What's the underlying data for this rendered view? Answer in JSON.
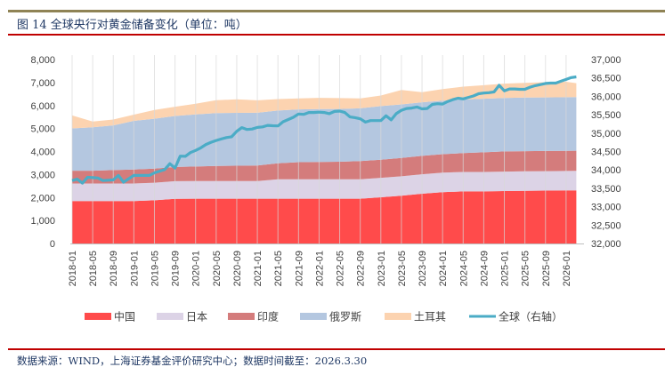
{
  "title": "图 14  全球央行对黄金储备变化（单位：吨）",
  "footer": "数据来源：WIND，上海证券基金评价研究中心；数据时间截至：2026.3.30",
  "colors": {
    "china": "#ff4b4b",
    "japan": "#dcd3e6",
    "india": "#d47c7c",
    "russia": "#b4c7e0",
    "turkey": "#fcd3b0",
    "global": "#4bacc6",
    "title": "#1f3864",
    "rule_top": "#8f8355",
    "rule_red": "#c00000"
  },
  "chart_data": {
    "type": "area",
    "stacked": true,
    "title": "",
    "xlabel": "",
    "ylabel": "",
    "y2label": "",
    "ylim": [
      0,
      8000
    ],
    "y2lim": [
      32000,
      37000
    ],
    "yticks": [
      "0",
      "1,000",
      "2,000",
      "3,000",
      "4,000",
      "5,000",
      "6,000",
      "7,000",
      "8,000"
    ],
    "y2ticks": [
      "32,000",
      "32,500",
      "33,000",
      "33,500",
      "34,000",
      "34,500",
      "35,000",
      "35,500",
      "36,000",
      "36,500",
      "37,000"
    ],
    "xticks": [
      "2018-01",
      "2018-05",
      "2018-09",
      "2019-01",
      "2019-05",
      "2019-09",
      "2020-01",
      "2020-05",
      "2020-09",
      "2021-01",
      "2021-05",
      "2021-09",
      "2022-01",
      "2022-05",
      "2022-09",
      "2023-01",
      "2023-05",
      "2023-09",
      "2024-01",
      "2024-05",
      "2024-09",
      "2025-01",
      "2025-05",
      "2025-09",
      "2026-01"
    ],
    "grid": "vertical",
    "legend_position": "bottom",
    "area_x": [
      "2018-01",
      "2018-05",
      "2018-09",
      "2019-01",
      "2019-05",
      "2019-09",
      "2020-01",
      "2020-05",
      "2020-09",
      "2021-01",
      "2021-05",
      "2021-09",
      "2022-01",
      "2022-05",
      "2022-09",
      "2023-01",
      "2023-05",
      "2023-09",
      "2024-01",
      "2024-05",
      "2024-09",
      "2025-01",
      "2025-05",
      "2025-09",
      "2026-01",
      "2026-03"
    ],
    "series": [
      {
        "name": "中国",
        "key": "china",
        "axis": "left",
        "values": [
          1842,
          1842,
          1842,
          1842,
          1880,
          1944,
          1948,
          1948,
          1948,
          1948,
          1948,
          1948,
          1948,
          1948,
          1948,
          2010,
          2076,
          2165,
          2235,
          2264,
          2264,
          2280,
          2292,
          2298,
          2306,
          2310
        ]
      },
      {
        "name": "日本",
        "key": "japan",
        "axis": "left",
        "values": [
          765,
          765,
          765,
          765,
          765,
          765,
          765,
          765,
          765,
          765,
          846,
          846,
          846,
          846,
          846,
          846,
          846,
          846,
          846,
          846,
          846,
          846,
          846,
          846,
          846,
          846
        ]
      },
      {
        "name": "印度",
        "key": "india",
        "axis": "left",
        "values": [
          558,
          560,
          587,
          608,
          613,
          618,
          633,
          657,
          668,
          677,
          695,
          744,
          754,
          760,
          787,
          787,
          795,
          800,
          803,
          822,
          854,
          876,
          879,
          880,
          880,
          880
        ]
      },
      {
        "name": "俄罗斯",
        "key": "russia",
        "axis": "left",
        "values": [
          1838,
          1890,
          1944,
          2119,
          2168,
          2219,
          2270,
          2299,
          2299,
          2295,
          2292,
          2292,
          2298,
          2299,
          2299,
          2330,
          2330,
          2330,
          2330,
          2330,
          2330,
          2330,
          2330,
          2330,
          2330,
          2330
        ]
      },
      {
        "name": "土耳其",
        "key": "turkey",
        "axis": "left",
        "values": [
          565,
          250,
          255,
          270,
          380,
          400,
          460,
          560,
          590,
          540,
          500,
          480,
          490,
          470,
          430,
          460,
          630,
          440,
          500,
          560,
          590,
          620,
          640,
          660,
          670,
          605
        ]
      }
    ],
    "line": {
      "name": "全球（右轴）",
      "key": "global",
      "axis": "right",
      "start": "2018-01",
      "frequency": "monthly",
      "values": [
        33710,
        33750,
        33640,
        33800,
        33790,
        33780,
        33710,
        33720,
        33730,
        33850,
        33665,
        33760,
        33850,
        33850,
        33850,
        33850,
        33920,
        33965,
        34010,
        34170,
        34050,
        34375,
        34370,
        34470,
        34530,
        34600,
        34690,
        34750,
        34800,
        34840,
        34880,
        34900,
        35050,
        35150,
        35100,
        35110,
        35155,
        35170,
        35210,
        35200,
        35195,
        35310,
        35370,
        35430,
        35520,
        35510,
        35560,
        35560,
        35570,
        35560,
        35530,
        35590,
        35600,
        35560,
        35440,
        35420,
        35390,
        35300,
        35340,
        35340,
        35340,
        35470,
        35360,
        35530,
        35620,
        35670,
        35680,
        35710,
        35660,
        35670,
        35780,
        35800,
        35790,
        35860,
        35910,
        35950,
        35930,
        35970,
        36010,
        36070,
        36090,
        36100,
        36120,
        36300,
        36150,
        36200,
        36200,
        36190,
        36190,
        36250,
        36290,
        36320,
        36350,
        36360,
        36360,
        36410,
        36460,
        36510,
        36530
      ]
    },
    "legend": [
      "中国",
      "日本",
      "印度",
      "俄罗斯",
      "土耳其",
      "全球（右轴）"
    ]
  }
}
